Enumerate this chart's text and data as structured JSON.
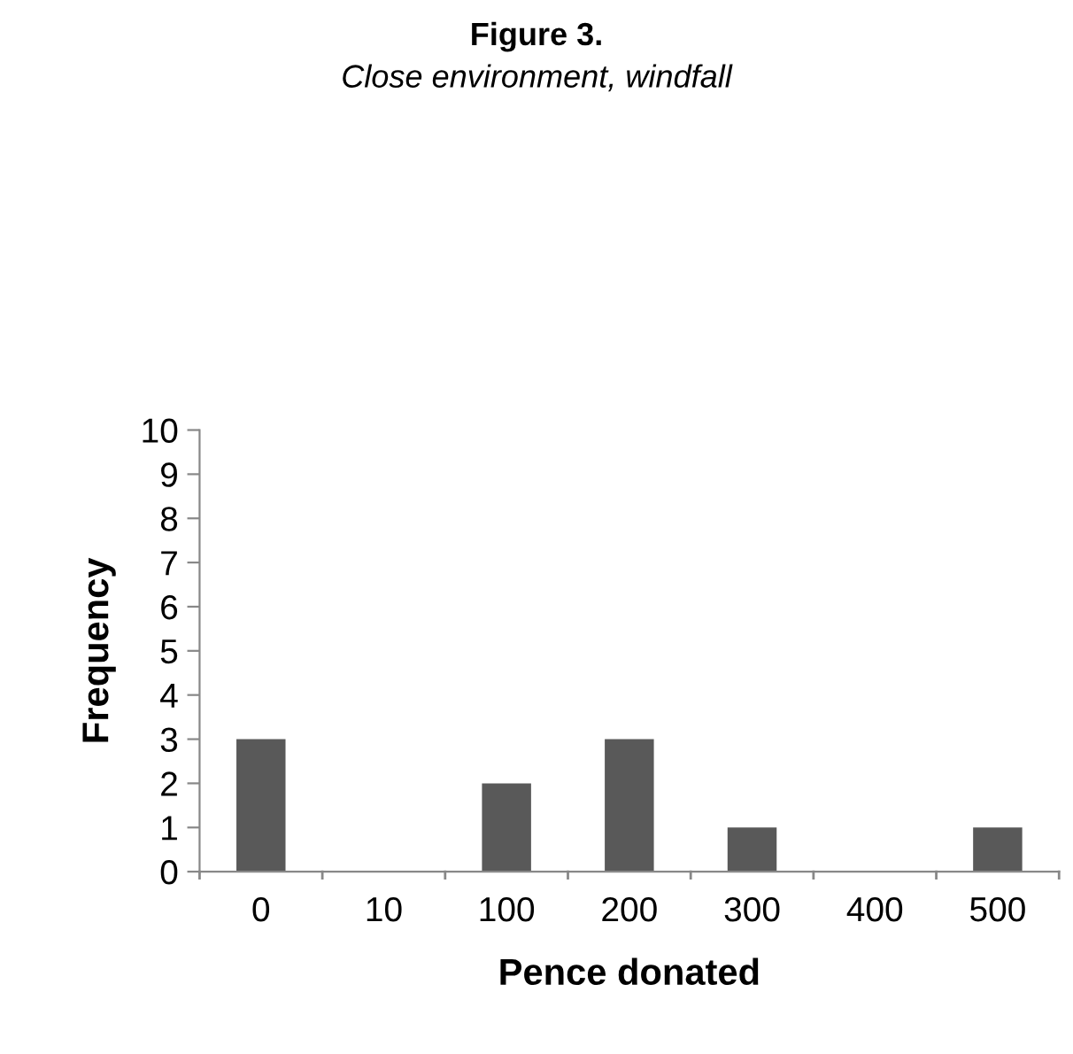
{
  "chart_data": {
    "type": "bar",
    "title": "Figure 3.",
    "subtitle": "Close environment, windfall",
    "xlabel": "Pence donated",
    "ylabel": "Frequency",
    "categories": [
      "0",
      "10",
      "100",
      "200",
      "300",
      "400",
      "500"
    ],
    "values": [
      3,
      0,
      2,
      3,
      1,
      0,
      1
    ],
    "color": "#595959",
    "ylim": [
      0,
      10
    ],
    "yticks": [
      0,
      1,
      2,
      3,
      4,
      5,
      6,
      7,
      8,
      9,
      10
    ],
    "grid": false,
    "legend": false
  }
}
